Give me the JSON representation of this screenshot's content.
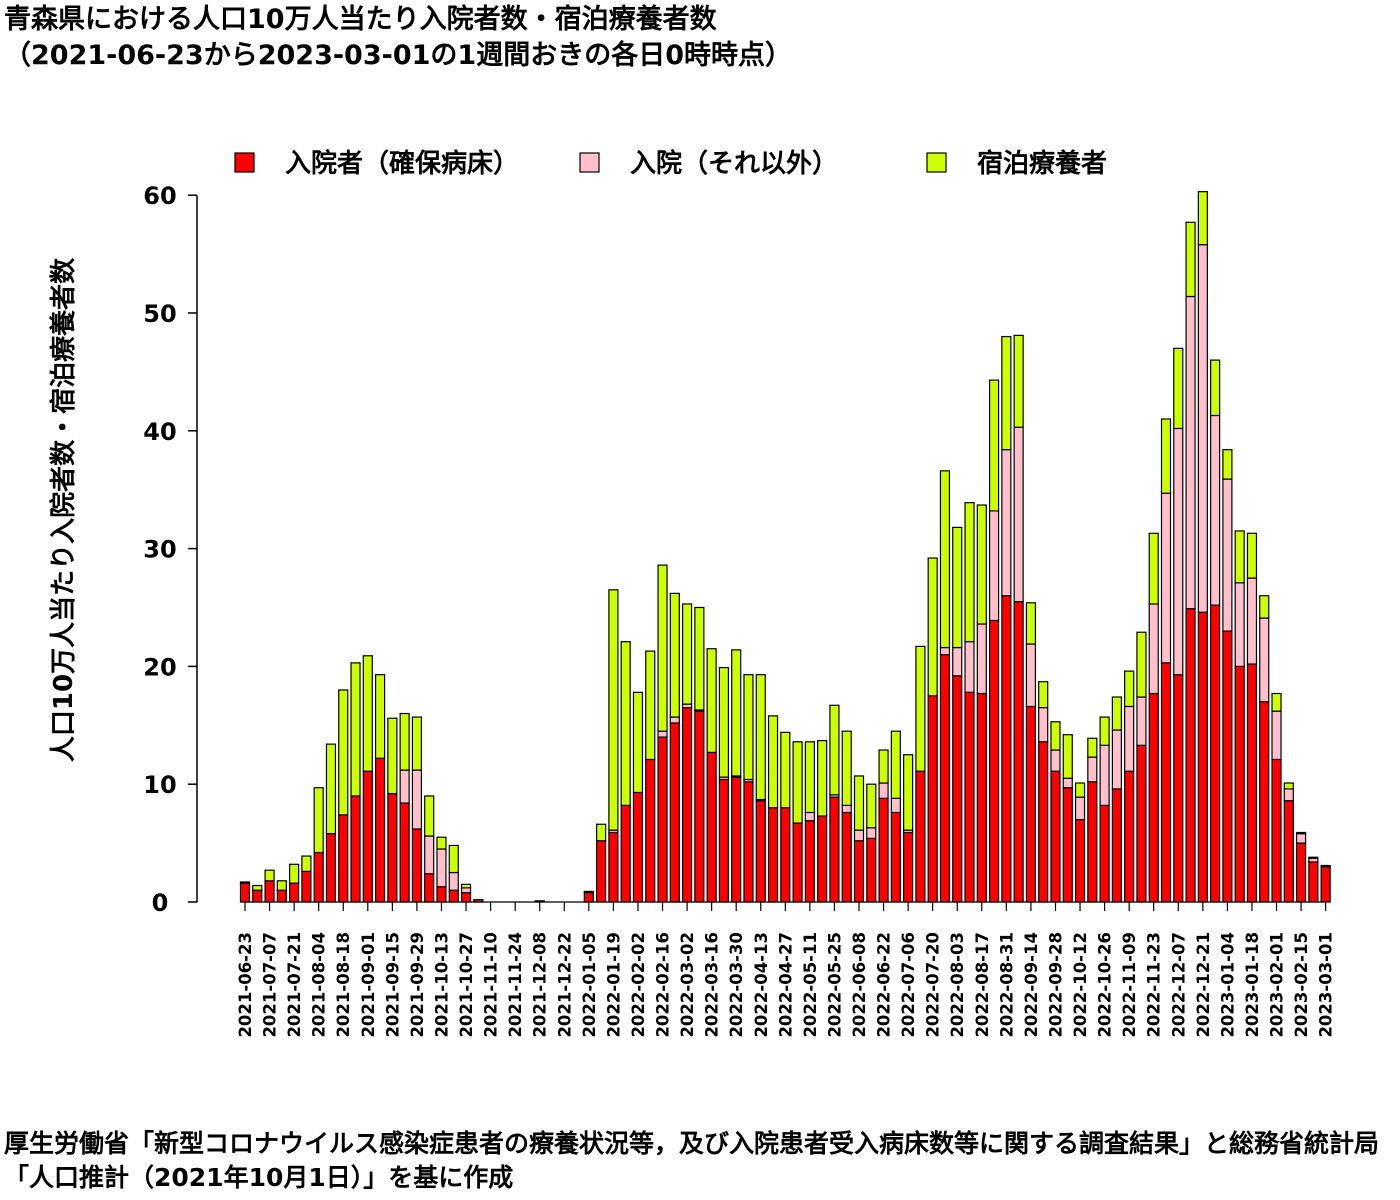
{
  "title": {
    "line1": "青森県における人口10万人当たり入院者数・宿泊療養者数",
    "line2": "（2021-06-23から2023-03-01の1週間おきの各日0時時点）"
  },
  "footer": "厚生労働省「新型コロナウイルス感染症患者の療養状況等，及び入院患者受入病床数等に関する調査結果」と総務省統計局「人口推計（2021年10月1日）」を基に作成",
  "chart_data": {
    "type": "bar",
    "stacked": true,
    "ylabel": "人口10万人当たり入院者数・宿泊療養者数",
    "xlabel": "",
    "ylim": [
      0,
      60
    ],
    "yticks": [
      0,
      10,
      20,
      30,
      40,
      50,
      60
    ],
    "legend_position": "top",
    "dates": [
      "2021-06-23",
      "2021-06-30",
      "2021-07-07",
      "2021-07-14",
      "2021-07-21",
      "2021-07-28",
      "2021-08-04",
      "2021-08-11",
      "2021-08-18",
      "2021-08-25",
      "2021-09-01",
      "2021-09-08",
      "2021-09-15",
      "2021-09-22",
      "2021-09-29",
      "2021-10-06",
      "2021-10-13",
      "2021-10-20",
      "2021-10-27",
      "2021-11-03",
      "2021-11-10",
      "2021-11-17",
      "2021-11-24",
      "2021-12-01",
      "2021-12-08",
      "2021-12-15",
      "2021-12-22",
      "2021-12-29",
      "2022-01-05",
      "2022-01-12",
      "2022-01-19",
      "2022-01-26",
      "2022-02-02",
      "2022-02-09",
      "2022-02-16",
      "2022-02-23",
      "2022-03-02",
      "2022-03-09",
      "2022-03-16",
      "2022-03-23",
      "2022-03-30",
      "2022-04-06",
      "2022-04-13",
      "2022-04-20",
      "2022-04-27",
      "2022-05-04",
      "2022-05-11",
      "2022-05-18",
      "2022-05-25",
      "2022-06-01",
      "2022-06-08",
      "2022-06-15",
      "2022-06-22",
      "2022-06-29",
      "2022-07-06",
      "2022-07-13",
      "2022-07-20",
      "2022-07-27",
      "2022-08-03",
      "2022-08-10",
      "2022-08-17",
      "2022-08-24",
      "2022-08-31",
      "2022-09-07",
      "2022-09-14",
      "2022-09-21",
      "2022-09-28",
      "2022-10-05",
      "2022-10-12",
      "2022-10-19",
      "2022-10-26",
      "2022-11-02",
      "2022-11-09",
      "2022-11-16",
      "2022-11-23",
      "2022-11-30",
      "2022-12-07",
      "2022-12-14",
      "2022-12-21",
      "2022-12-28",
      "2023-01-04",
      "2023-01-11",
      "2023-01-18",
      "2023-01-25",
      "2023-02-01",
      "2023-02-08",
      "2023-02-15",
      "2023-02-22",
      "2023-03-01"
    ],
    "x_tick_labels": [
      "2021-06-23",
      "2021-07-07",
      "2021-07-21",
      "2021-08-04",
      "2021-08-18",
      "2021-09-01",
      "2021-09-15",
      "2021-09-29",
      "2021-10-13",
      "2021-10-27",
      "2021-11-10",
      "2021-11-24",
      "2021-12-08",
      "2021-12-22",
      "2022-01-05",
      "2022-01-19",
      "2022-02-02",
      "2022-02-16",
      "2022-03-02",
      "2022-03-16",
      "2022-03-30",
      "2022-04-13",
      "2022-04-27",
      "2022-05-11",
      "2022-05-25",
      "2022-06-08",
      "2022-06-22",
      "2022-07-06",
      "2022-07-20",
      "2022-08-03",
      "2022-08-17",
      "2022-08-31",
      "2022-09-14",
      "2022-09-28",
      "2022-10-12",
      "2022-10-26",
      "2022-11-09",
      "2022-11-23",
      "2022-12-07",
      "2022-12-21",
      "2023-01-04",
      "2023-01-18",
      "2023-02-01",
      "2023-02-15",
      "2023-03-01"
    ],
    "series": [
      {
        "name": "入院者（確保病床）",
        "color": "#ff0000",
        "values": [
          1.6,
          1.0,
          1.8,
          1.0,
          1.6,
          2.6,
          4.2,
          5.8,
          7.4,
          9.0,
          11.1,
          12.2,
          9.2,
          8.4,
          6.2,
          2.4,
          1.3,
          1.0,
          0.8,
          0.2,
          0,
          0,
          0,
          0,
          0.1,
          0,
          0,
          0,
          0.8,
          5.2,
          5.9,
          8.2,
          9.3,
          12.1,
          14.0,
          15.2,
          16.5,
          16.2,
          12.7,
          10.4,
          10.6,
          10.2,
          8.6,
          8.0,
          8.0,
          6.7,
          6.9,
          7.3,
          8.9,
          7.6,
          5.2,
          5.4,
          8.8,
          7.6,
          5.9,
          11.1,
          17.5,
          21.0,
          19.2,
          17.8,
          17.7,
          23.9,
          26.0,
          25.5,
          16.6,
          13.6,
          11.1,
          9.7,
          7.0,
          10.2,
          8.2,
          9.6,
          11.1,
          13.3,
          17.7,
          20.3,
          19.3,
          24.9,
          24.6,
          25.2,
          23.0,
          20.0,
          20.2,
          17.0,
          12.1,
          8.6,
          5.0,
          3.4,
          3.0
        ]
      },
      {
        "name": "入院（それ以外）",
        "color": "#ffc0cb",
        "values": [
          0,
          0,
          0,
          0,
          0,
          0,
          0,
          0,
          0,
          0,
          0,
          0,
          0,
          2.8,
          5.0,
          3.2,
          3.2,
          1.5,
          0.4,
          0,
          0,
          0,
          0,
          0,
          0,
          0,
          0,
          0,
          0,
          0,
          0.2,
          0,
          0,
          0,
          0.5,
          0.5,
          0.3,
          0.1,
          0,
          0.2,
          0.1,
          0.2,
          0.1,
          0,
          0,
          0,
          0.7,
          0,
          0.2,
          0.6,
          0.9,
          0.9,
          1.3,
          1.2,
          0.2,
          0,
          0,
          0.6,
          2.4,
          4.3,
          5.9,
          9.3,
          12.4,
          14.8,
          5.3,
          2.9,
          1.8,
          0.8,
          1.9,
          2.1,
          5.1,
          5.0,
          5.5,
          4.1,
          7.6,
          14.4,
          20.9,
          26.5,
          31.2,
          16.1,
          12.9,
          7.1,
          7.3,
          7.1,
          4.1,
          1.0,
          0.8,
          0.3,
          0
        ]
      },
      {
        "name": "宿泊療養者",
        "color": "#ccff00",
        "values": [
          0.1,
          0.4,
          0.9,
          0.8,
          1.6,
          1.3,
          5.5,
          7.6,
          10.6,
          11.3,
          9.8,
          7.1,
          6.4,
          4.8,
          4.5,
          3.4,
          1.0,
          2.3,
          0.3,
          0,
          0,
          0,
          0,
          0,
          0,
          0,
          0,
          0,
          0.1,
          1.4,
          20.4,
          13.9,
          8.5,
          9.2,
          14.1,
          10.5,
          8.5,
          8.7,
          8.8,
          9.3,
          10.7,
          8.9,
          10.6,
          7.8,
          6.4,
          6.9,
          6.0,
          6.4,
          7.6,
          6.3,
          4.6,
          3.7,
          2.8,
          5.7,
          6.4,
          10.6,
          11.7,
          15.0,
          10.2,
          11.8,
          10.1,
          11.1,
          9.6,
          7.8,
          3.5,
          2.2,
          2.4,
          3.7,
          1.2,
          1.6,
          2.4,
          2.8,
          3.0,
          5.5,
          6.0,
          6.3,
          6.8,
          6.3,
          4.5,
          4.7,
          2.5,
          4.4,
          3.8,
          1.9,
          1.5,
          0.5,
          0.1,
          0.1,
          0.1
        ]
      }
    ]
  }
}
